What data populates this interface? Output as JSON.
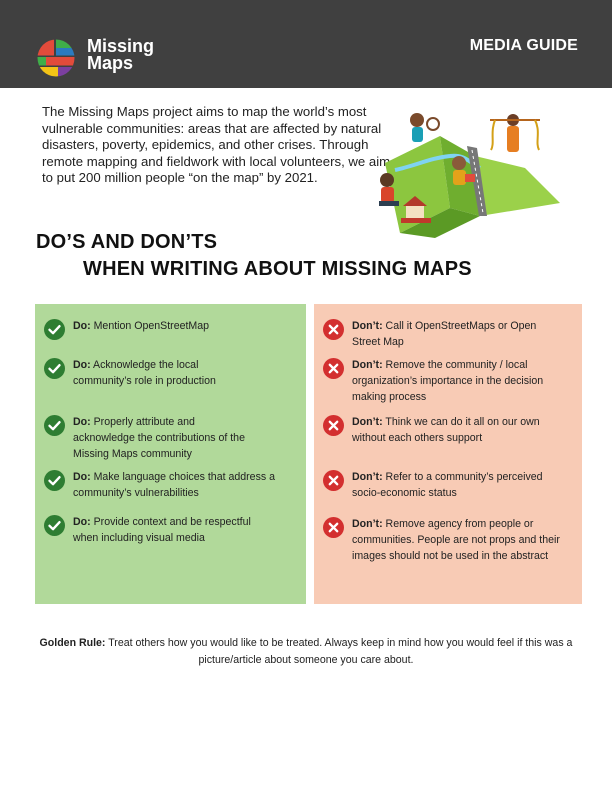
{
  "header": {
    "brand_line1": "Missing",
    "brand_line2": "Maps",
    "guide_label": "MEDIA GUIDE",
    "background": "#404040"
  },
  "intro": "The Missing Maps project aims to map the world’s most vulnerable communities: areas that are affected by natural disasters, poverty, epidemics, and other crises. Through remote mapping and fieldwork with local volunteers, we aim to put 200 million people “on the map” by 2021.",
  "heading": {
    "line1": "DO’S AND DON’TS",
    "line2": "WHEN WRITING ABOUT MISSING MAPS"
  },
  "dos": {
    "panel_color": "#b1d99a",
    "icon_color": "#2e7d32",
    "items": [
      {
        "label": "Do:",
        "text": "Mention OpenStreetMap"
      },
      {
        "label": "Do:",
        "text": "Acknowledge the local community’s role in production"
      },
      {
        "label": "Do:",
        "text": "Properly attribute and acknowledge the contributions of the Missing Maps community"
      },
      {
        "label": "Do:",
        "text": "Make language choices that address a community’s vulnerabilities"
      },
      {
        "label": "Do:",
        "text": "Provide context and be respectful when including visual media"
      }
    ]
  },
  "donts": {
    "panel_color": "#f8cbb5",
    "icon_color": "#d32f2f",
    "items": [
      {
        "label": "Don’t:",
        "text": "Call it OpenStreetMaps or Open Street Map"
      },
      {
        "label": "Don’t:",
        "text": "Remove the community / local organization’s importance in the decision making process"
      },
      {
        "label": "Don’t:",
        "text": "Think we can do it all on our own without each others support"
      },
      {
        "label": "Don’t:",
        "text": "Refer to a community’s perceived socio-economic status"
      },
      {
        "label": "Don’t:",
        "text": "Remove agency from people or communities. People are not props and their images should not be used in the abstract"
      }
    ]
  },
  "golden_rule": {
    "label": "Golden Rule:",
    "text": "Treat others how you would like to be treated. Always keep in mind how you would feel if this was a picture/article about someone you care about."
  }
}
